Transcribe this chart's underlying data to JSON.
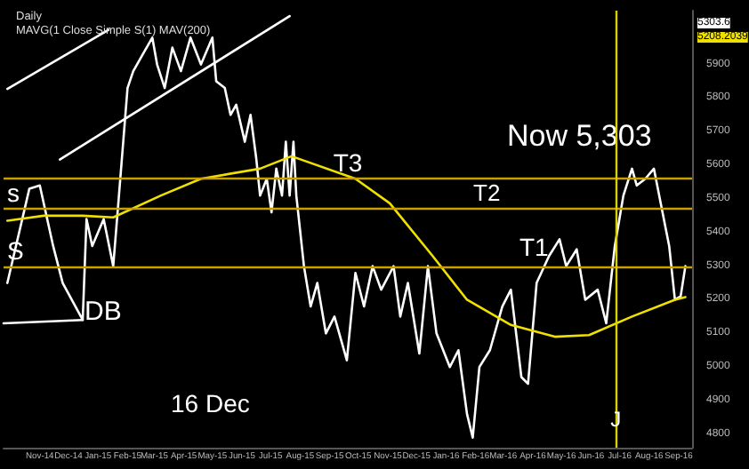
{
  "chart_data": {
    "type": "line",
    "title": "Daily",
    "subtitle": "MAVG(1 Close Simple S(1) MAV(200)",
    "xlim": [
      "2014-09-24",
      "2016-09-15"
    ],
    "xticks": [
      {
        "value": "2014-11-01",
        "label": "Nov-14"
      },
      {
        "value": "2014-12-01",
        "label": "Dec-14"
      },
      {
        "value": "2015-01-01",
        "label": "Jan-15"
      },
      {
        "value": "2015-02-01",
        "label": "Feb-15"
      },
      {
        "value": "2015-03-01",
        "label": "Mar-15"
      },
      {
        "value": "2015-04-01",
        "label": "Apr-15"
      },
      {
        "value": "2015-05-01",
        "label": "May-15"
      },
      {
        "value": "2015-06-01",
        "label": "Jun-15"
      },
      {
        "value": "2015-07-01",
        "label": "Jul-15"
      },
      {
        "value": "2015-08-01",
        "label": "Aug-15"
      },
      {
        "value": "2015-09-01",
        "label": "Sep-15"
      },
      {
        "value": "2015-10-01",
        "label": "Oct-15"
      },
      {
        "value": "2015-11-01",
        "label": "Nov-15"
      },
      {
        "value": "2015-12-01",
        "label": "Dec-15"
      },
      {
        "value": "2016-01-01",
        "label": "Jan-16"
      },
      {
        "value": "2016-02-01",
        "label": "Feb-16"
      },
      {
        "value": "2016-03-01",
        "label": "Mar-16"
      },
      {
        "value": "2016-04-01",
        "label": "Apr-16"
      },
      {
        "value": "2016-05-01",
        "label": "May-16"
      },
      {
        "value": "2016-06-01",
        "label": "Jun-16"
      },
      {
        "value": "2016-07-01",
        "label": "Jul-16"
      },
      {
        "value": "2016-08-01",
        "label": "Aug-16"
      },
      {
        "value": "2016-09-01",
        "label": "Sep-16"
      }
    ],
    "ylim": [
      4760,
      6060
    ],
    "yticks": [
      4800,
      4900,
      5000,
      5100,
      5200,
      5300,
      5400,
      5500,
      5600,
      5700,
      5800,
      5900
    ],
    "grid": false,
    "marker": "none",
    "line_style": "solid",
    "series": [
      {
        "color": "#ffffff",
        "x": [
          "2014-09-28",
          "2014-10-21",
          "2014-11-01",
          "2014-11-15",
          "2014-11-25",
          "2014-12-16",
          "2014-12-20",
          "2014-12-26",
          "2015-01-07",
          "2015-01-17",
          "2015-01-23",
          "2015-02-01",
          "2015-02-07",
          "2015-02-17",
          "2015-02-27",
          "2015-03-04",
          "2015-03-12",
          "2015-03-20",
          "2015-03-29",
          "2015-04-08",
          "2015-04-19",
          "2015-05-01",
          "2015-05-05",
          "2015-05-14",
          "2015-05-20",
          "2015-05-26",
          "2015-06-04",
          "2015-06-10",
          "2015-06-16",
          "2015-06-20",
          "2015-06-27",
          "2015-07-02",
          "2015-07-07",
          "2015-07-13",
          "2015-07-17",
          "2015-07-21",
          "2015-07-25",
          "2015-07-28",
          "2015-08-05",
          "2015-08-12",
          "2015-08-19",
          "2015-08-28",
          "2015-09-06",
          "2015-09-19",
          "2015-09-28",
          "2015-10-07",
          "2015-10-16",
          "2015-10-25",
          "2015-11-07",
          "2015-11-14",
          "2015-11-22",
          "2015-12-04",
          "2015-12-13",
          "2015-12-22",
          "2016-01-05",
          "2016-01-14",
          "2016-01-23",
          "2016-01-29",
          "2016-02-05",
          "2016-02-16",
          "2016-02-29",
          "2016-03-09",
          "2016-03-20",
          "2016-03-27",
          "2016-04-05",
          "2016-04-18",
          "2016-04-29",
          "2016-05-06",
          "2016-05-17",
          "2016-05-26",
          "2016-06-08",
          "2016-06-17",
          "2016-06-26",
          "2016-07-05",
          "2016-07-14",
          "2016-07-19",
          "2016-07-28",
          "2016-08-06",
          "2016-08-15",
          "2016-08-22",
          "2016-08-28",
          "2016-09-03",
          "2016-09-08"
        ],
        "values": [
          5250,
          5530,
          5540,
          5360,
          5250,
          5140,
          5440,
          5360,
          5440,
          5300,
          5510,
          5830,
          5880,
          5930,
          5980,
          5900,
          5830,
          5950,
          5880,
          5980,
          5900,
          5980,
          5850,
          5830,
          5750,
          5780,
          5670,
          5750,
          5620,
          5510,
          5560,
          5460,
          5590,
          5510,
          5670,
          5510,
          5670,
          5510,
          5300,
          5180,
          5250,
          5100,
          5150,
          5020,
          5280,
          5180,
          5300,
          5230,
          5300,
          5150,
          5250,
          5040,
          5300,
          5100,
          5000,
          5050,
          4860,
          4790,
          5000,
          5050,
          5180,
          5230,
          4970,
          4950,
          5250,
          5330,
          5380,
          5300,
          5350,
          5200,
          5230,
          5130,
          5360,
          5510,
          5590,
          5540,
          5560,
          5590,
          5460,
          5360,
          5200,
          5210,
          5300
        ]
      },
      {
        "color": "#f0e000",
        "x": [
          "2014-09-28",
          "2014-11-05",
          "2014-12-16",
          "2015-01-17",
          "2015-03-08",
          "2015-04-19",
          "2015-06-20",
          "2015-07-23",
          "2015-09-28",
          "2015-11-03",
          "2015-12-18",
          "2016-01-23",
          "2016-03-09",
          "2016-04-24",
          "2016-05-30",
          "2016-07-14",
          "2016-08-28",
          "2016-09-08"
        ],
        "values": [
          5435,
          5450,
          5450,
          5445,
          5510,
          5560,
          5590,
          5627,
          5560,
          5487,
          5330,
          5200,
          5125,
          5090,
          5095,
          5150,
          5200,
          5208
        ]
      },
      {
        "color": "#ffffff",
        "x": [
          "2014-09-28",
          "2015-01-12"
        ],
        "values": [
          5827,
          6003
        ]
      },
      {
        "color": "#ffffff",
        "x": [
          "2014-11-22",
          "2015-07-21"
        ],
        "values": [
          5617,
          6044
        ]
      },
      {
        "color": "#ffffff",
        "x": [
          "2014-09-24",
          "2014-12-16"
        ],
        "values": [
          5130,
          5140
        ]
      }
    ],
    "ref_lines": [
      {
        "axis": "y",
        "value": 5300,
        "label": "S",
        "color": "#c8a000"
      },
      {
        "axis": "y",
        "value": 5470,
        "label": "s",
        "color": "#c8a000"
      },
      {
        "axis": "y",
        "value": 5560,
        "label": "T3",
        "color": "#c8a000"
      },
      {
        "axis": "x",
        "value": "2016-06-27",
        "label": "J",
        "color": "#d8d000"
      }
    ],
    "annotations": [
      {
        "text": "DB",
        "x": "2014-12-16",
        "y": 5140
      },
      "T1",
      "T2",
      "16 Dec",
      "Now 5,303",
      "5303.6",
      "5208.2039"
    ]
  }
}
